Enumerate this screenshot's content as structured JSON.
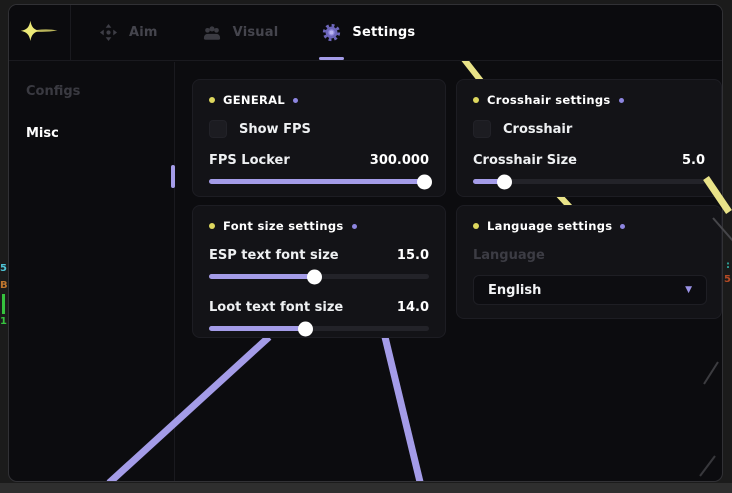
{
  "topbar": {
    "tabs": [
      {
        "label": "Aim"
      },
      {
        "label": "Visual"
      },
      {
        "label": "Settings"
      }
    ]
  },
  "sidebar": {
    "items": [
      {
        "label": "Configs"
      },
      {
        "label": "Misc"
      }
    ]
  },
  "panels": {
    "general": {
      "title": "GENERAL",
      "show_fps_label": "Show FPS",
      "fps_locker": {
        "label": "FPS Locker",
        "value": "300.000",
        "percent": 98
      }
    },
    "crosshair": {
      "title": "Crosshair settings",
      "crosshair_label": "Crosshair",
      "crosshair_size": {
        "label": "Crosshair Size",
        "value": "5.0",
        "percent": 14
      }
    },
    "font_size": {
      "title": "Font size settings",
      "esp_font": {
        "label": "ESP text font size",
        "value": "15.0",
        "percent": 48
      },
      "loot_font": {
        "label": "Loot text font size",
        "value": "14.0",
        "percent": 44
      }
    },
    "language": {
      "title": "Language settings",
      "field_label": "Language",
      "selected_value": "English"
    }
  },
  "esp_overlay": {
    "left_number": "5",
    "left_letter": "B",
    "left_bottom_number": "1",
    "right_colon": ":",
    "right_number": "5"
  },
  "colors": {
    "accent_purple": "#a49ce8",
    "accent_yellow": "#e9e388",
    "panel_bg": "#131317",
    "window_bg": "#0c0c0f"
  }
}
